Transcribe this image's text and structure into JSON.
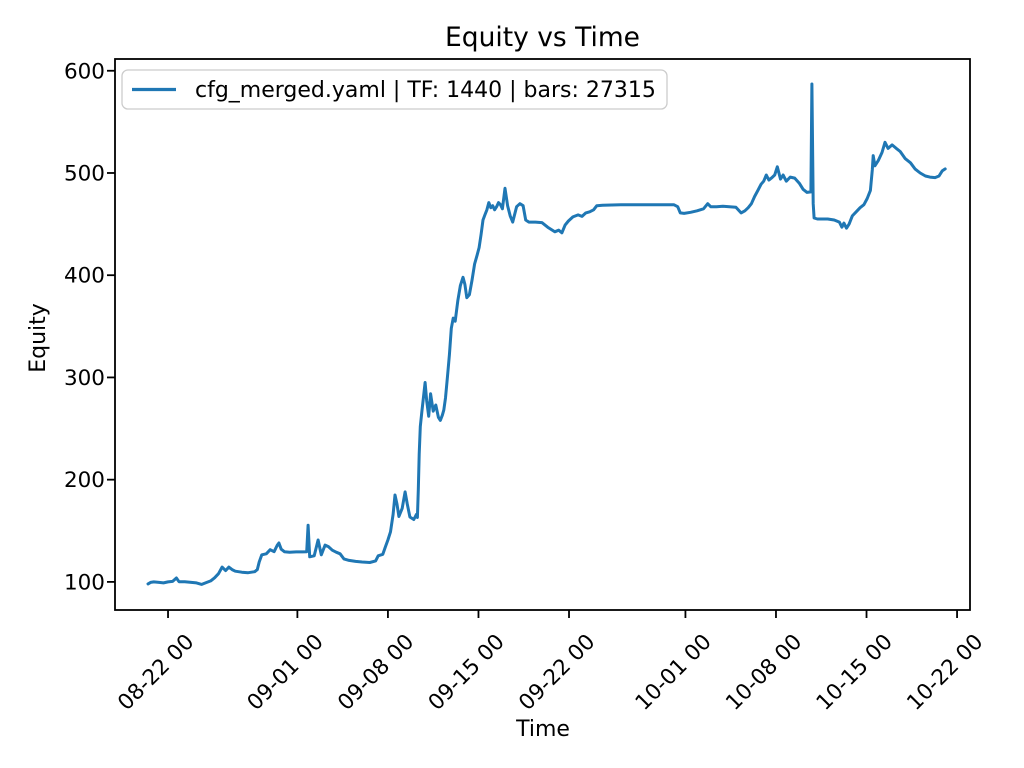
{
  "figure": {
    "background": "#ffffff"
  },
  "chart_data": {
    "type": "line",
    "title": "Equity vs Time",
    "xlabel": "Time",
    "ylabel": "Equity",
    "legend_label": "cfg_merged.yaml | TF: 1440 | bars: 27315",
    "legend_position": "upper left",
    "grid": false,
    "line_color": "#1f77b4",
    "axis_color": "#000000",
    "legend_border_color": "#cccccc",
    "x_unit": "days relative to first labeled tick (08-22 00)",
    "xlim": [
      -4.1,
      62.0
    ],
    "ylim": [
      72.5,
      611.5
    ],
    "yticks": [
      100,
      200,
      300,
      400,
      500,
      600
    ],
    "xticks": [
      {
        "day": 0,
        "label": "08-22 00"
      },
      {
        "day": 10,
        "label": "09-01 00"
      },
      {
        "day": 17,
        "label": "09-08 00"
      },
      {
        "day": 24,
        "label": "09-15 00"
      },
      {
        "day": 31,
        "label": "09-22 00"
      },
      {
        "day": 40,
        "label": "10-01 00"
      },
      {
        "day": 47,
        "label": "10-08 00"
      },
      {
        "day": 54,
        "label": "10-15 00"
      },
      {
        "day": 61,
        "label": "10-22 00"
      }
    ],
    "series": [
      {
        "name": "cfg_merged.yaml | TF: 1440 | bars: 27315",
        "points": [
          [
            -1.55,
            98
          ],
          [
            -1.35,
            99.5
          ],
          [
            -1.1,
            100
          ],
          [
            -0.7,
            99.5
          ],
          [
            -0.35,
            99
          ],
          [
            0,
            100
          ],
          [
            0.35,
            100.5
          ],
          [
            0.65,
            103.8
          ],
          [
            0.85,
            100.2
          ],
          [
            1.3,
            100.2
          ],
          [
            1.8,
            99.5
          ],
          [
            2.2,
            99
          ],
          [
            2.6,
            97.5
          ],
          [
            3,
            99.5
          ],
          [
            3.3,
            101
          ],
          [
            3.6,
            104
          ],
          [
            3.9,
            108
          ],
          [
            4.18,
            114.5
          ],
          [
            4.45,
            111
          ],
          [
            4.7,
            114.5
          ],
          [
            4.95,
            112
          ],
          [
            5.2,
            110.5
          ],
          [
            5.7,
            109.5
          ],
          [
            6.2,
            109
          ],
          [
            6.7,
            110
          ],
          [
            6.9,
            112
          ],
          [
            7.05,
            119.5
          ],
          [
            7.25,
            126.5
          ],
          [
            7.6,
            127.5
          ],
          [
            7.9,
            131.5
          ],
          [
            8.2,
            129.5
          ],
          [
            8.45,
            136
          ],
          [
            8.57,
            138
          ],
          [
            8.75,
            132
          ],
          [
            9,
            129.5
          ],
          [
            9.4,
            129
          ],
          [
            9.9,
            129.3
          ],
          [
            10.4,
            129.3
          ],
          [
            10.72,
            129.5
          ],
          [
            10.83,
            155.5
          ],
          [
            10.95,
            124.5
          ],
          [
            11.3,
            125.5
          ],
          [
            11.6,
            141
          ],
          [
            11.85,
            126.5
          ],
          [
            12.14,
            136
          ],
          [
            12.4,
            134.5
          ],
          [
            12.7,
            131
          ],
          [
            13,
            129
          ],
          [
            13.3,
            127.5
          ],
          [
            13.6,
            122.5
          ],
          [
            14,
            121
          ],
          [
            14.5,
            120
          ],
          [
            15,
            119.5
          ],
          [
            15.6,
            119
          ],
          [
            16.05,
            120.5
          ],
          [
            16.25,
            125.5
          ],
          [
            16.6,
            127
          ],
          [
            16.8,
            134
          ],
          [
            17,
            141
          ],
          [
            17.2,
            149
          ],
          [
            17.4,
            166
          ],
          [
            17.55,
            185
          ],
          [
            17.7,
            176
          ],
          [
            17.85,
            164
          ],
          [
            18.1,
            172
          ],
          [
            18.33,
            188
          ],
          [
            18.5,
            176
          ],
          [
            18.7,
            163.5
          ],
          [
            19,
            161
          ],
          [
            19.2,
            166
          ],
          [
            19.28,
            163
          ],
          [
            19.35,
            190
          ],
          [
            19.42,
            225
          ],
          [
            19.5,
            252
          ],
          [
            19.62,
            266
          ],
          [
            19.75,
            281
          ],
          [
            19.87,
            295
          ],
          [
            20,
            277
          ],
          [
            20.15,
            262
          ],
          [
            20.3,
            284
          ],
          [
            20.5,
            267
          ],
          [
            20.7,
            273
          ],
          [
            20.9,
            261
          ],
          [
            21.05,
            258
          ],
          [
            21.2,
            263
          ],
          [
            21.32,
            268
          ],
          [
            21.45,
            280
          ],
          [
            21.6,
            300
          ],
          [
            21.75,
            322
          ],
          [
            21.9,
            348
          ],
          [
            22.05,
            358
          ],
          [
            22.2,
            355
          ],
          [
            22.4,
            375
          ],
          [
            22.6,
            390
          ],
          [
            22.8,
            398
          ],
          [
            22.95,
            391
          ],
          [
            23.1,
            378
          ],
          [
            23.3,
            381
          ],
          [
            23.5,
            395
          ],
          [
            23.7,
            411
          ],
          [
            23.9,
            420
          ],
          [
            24.05,
            427
          ],
          [
            24.2,
            440
          ],
          [
            24.35,
            454
          ],
          [
            24.5,
            459
          ],
          [
            24.65,
            464
          ],
          [
            24.8,
            471
          ],
          [
            24.95,
            466
          ],
          [
            25.1,
            468
          ],
          [
            25.25,
            464
          ],
          [
            25.4,
            467
          ],
          [
            25.55,
            471
          ],
          [
            25.7,
            469
          ],
          [
            25.85,
            465
          ],
          [
            26.05,
            485
          ],
          [
            26.25,
            468
          ],
          [
            26.45,
            458
          ],
          [
            26.65,
            452
          ],
          [
            26.95,
            467
          ],
          [
            27.2,
            470
          ],
          [
            27.45,
            468
          ],
          [
            27.65,
            454
          ],
          [
            27.9,
            452
          ],
          [
            28.4,
            452
          ],
          [
            28.9,
            451.5
          ],
          [
            29.35,
            447
          ],
          [
            29.9,
            442.5
          ],
          [
            30.2,
            444
          ],
          [
            30.45,
            441.5
          ],
          [
            30.7,
            449
          ],
          [
            30.95,
            453
          ],
          [
            31.3,
            457
          ],
          [
            31.7,
            459
          ],
          [
            32,
            457.5
          ],
          [
            32.3,
            461
          ],
          [
            32.6,
            462
          ],
          [
            32.9,
            464
          ],
          [
            33.15,
            468
          ],
          [
            33.6,
            468.5
          ],
          [
            35,
            469
          ],
          [
            36.5,
            469
          ],
          [
            38,
            469
          ],
          [
            39.1,
            469
          ],
          [
            39.4,
            467
          ],
          [
            39.6,
            461
          ],
          [
            39.9,
            460.5
          ],
          [
            40.4,
            461.5
          ],
          [
            40.9,
            463
          ],
          [
            41.4,
            465
          ],
          [
            41.72,
            470
          ],
          [
            41.95,
            467
          ],
          [
            42.4,
            467
          ],
          [
            42.9,
            467.5
          ],
          [
            43.4,
            467
          ],
          [
            43.9,
            466.5
          ],
          [
            44.3,
            461
          ],
          [
            44.6,
            463
          ],
          [
            44.85,
            466
          ],
          [
            45.1,
            470
          ],
          [
            45.35,
            477
          ],
          [
            45.6,
            483
          ],
          [
            45.85,
            489
          ],
          [
            46.05,
            492
          ],
          [
            46.25,
            498
          ],
          [
            46.45,
            493
          ],
          [
            46.65,
            495
          ],
          [
            46.9,
            498
          ],
          [
            47.1,
            506
          ],
          [
            47.35,
            494
          ],
          [
            47.55,
            498
          ],
          [
            47.8,
            492
          ],
          [
            48.1,
            496
          ],
          [
            48.45,
            495
          ],
          [
            48.8,
            490
          ],
          [
            49.1,
            484
          ],
          [
            49.4,
            481
          ],
          [
            49.7,
            481.5
          ],
          [
            49.78,
            587
          ],
          [
            49.88,
            470
          ],
          [
            49.95,
            456
          ],
          [
            50.2,
            455
          ],
          [
            50.6,
            455
          ],
          [
            51,
            455
          ],
          [
            51.5,
            454
          ],
          [
            51.9,
            452
          ],
          [
            52.1,
            447
          ],
          [
            52.25,
            451
          ],
          [
            52.45,
            446
          ],
          [
            52.65,
            450
          ],
          [
            52.9,
            458
          ],
          [
            53.2,
            462
          ],
          [
            53.5,
            466
          ],
          [
            53.8,
            469
          ],
          [
            54.05,
            475
          ],
          [
            54.3,
            483
          ],
          [
            54.45,
            503
          ],
          [
            54.52,
            517
          ],
          [
            54.65,
            507
          ],
          [
            54.9,
            512
          ],
          [
            55.2,
            520
          ],
          [
            55.43,
            530
          ],
          [
            55.67,
            524
          ],
          [
            55.98,
            527.5
          ],
          [
            56.3,
            524
          ],
          [
            56.6,
            521
          ],
          [
            57,
            514
          ],
          [
            57.4,
            510
          ],
          [
            57.75,
            504
          ],
          [
            58.15,
            500
          ],
          [
            58.55,
            497
          ],
          [
            58.9,
            496
          ],
          [
            59.3,
            495.5
          ],
          [
            59.6,
            497
          ],
          [
            59.85,
            502
          ],
          [
            60.08,
            504
          ]
        ]
      }
    ]
  }
}
